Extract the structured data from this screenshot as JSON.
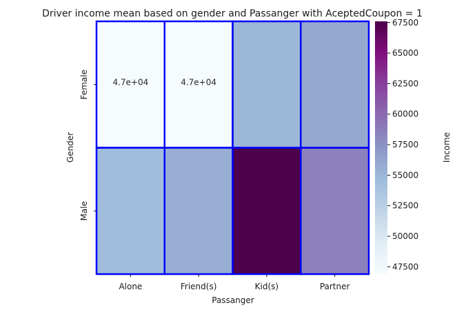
{
  "chart_data": {
    "type": "heatmap",
    "title": "Driver income mean based on gender and Passanger with AceptedCoupon = 1",
    "xlabel": "Passanger",
    "ylabel": "Gender",
    "x_categories": [
      "Alone",
      "Friend(s)",
      "Kid(s)",
      "Partner"
    ],
    "y_categories": [
      "Female",
      "Male"
    ],
    "values": [
      [
        47000,
        47000,
        55000,
        56000
      ],
      [
        54500,
        55700,
        67600,
        58500
      ]
    ],
    "cell_labels": [
      [
        "4.7e+04",
        "4.7e+04",
        "",
        ""
      ],
      [
        "",
        "",
        "",
        ""
      ]
    ],
    "colormap": "BuPu",
    "colorbar": {
      "label": "Income",
      "range": [
        46900,
        67600
      ],
      "ticks": [
        "47500",
        "50000",
        "52500",
        "55000",
        "57500",
        "60000",
        "62500",
        "65000",
        "67500"
      ]
    },
    "cell_border_color": "#0000ff",
    "annotation_color": "#262626"
  }
}
